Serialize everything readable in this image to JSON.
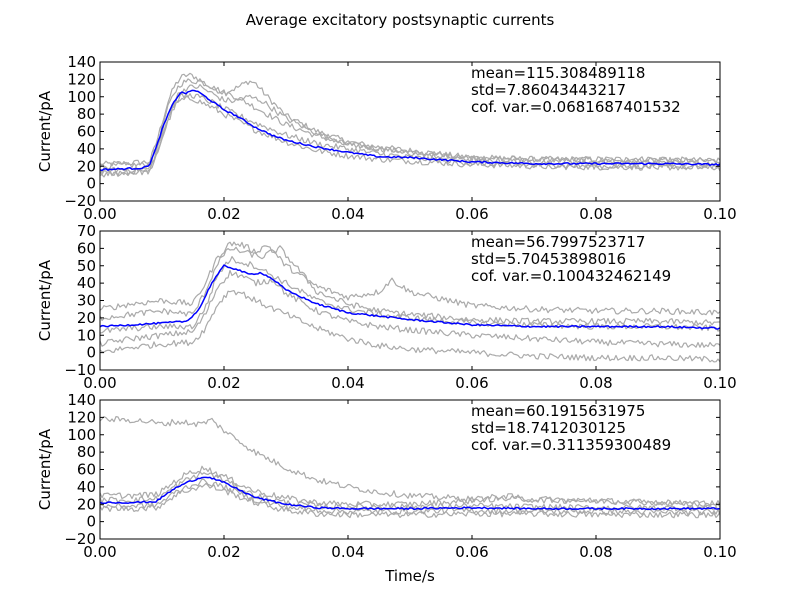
{
  "figure": {
    "title": "Average excitatory postsynaptic currents",
    "xlabel": "Time/s",
    "background": "#ffffff",
    "trial_color": "#aaaaaa",
    "mean_color": "#0000ff"
  },
  "chart_data": [
    {
      "type": "line",
      "ylabel": "Current/pA",
      "xlim": [
        0,
        0.1
      ],
      "ylim": [
        -20,
        140
      ],
      "xticks": [
        0,
        0.02,
        0.04,
        0.06,
        0.08,
        0.1
      ],
      "xtick_labels": [
        "0.00",
        "0.02",
        "0.04",
        "0.06",
        "0.08",
        "0.10"
      ],
      "yticks": [
        -20,
        0,
        20,
        40,
        60,
        80,
        100,
        120,
        140
      ],
      "ytick_labels": [
        "−20",
        "0",
        "20",
        "40",
        "60",
        "80",
        "100",
        "120",
        "140"
      ],
      "grid": false,
      "annotations": [
        "mean=115.308489118",
        "std=7.86043443217",
        "cof. var.=0.0681687401532"
      ],
      "series": [
        {
          "role": "mean",
          "color": "#0000ff",
          "x": [
            0,
            0.007,
            0.008,
            0.009,
            0.01,
            0.011,
            0.012,
            0.013,
            0.014,
            0.015,
            0.016,
            0.018,
            0.02,
            0.022,
            0.025,
            0.028,
            0.03,
            0.035,
            0.04,
            0.045,
            0.05,
            0.06,
            0.07,
            0.08,
            0.09,
            0.1
          ],
          "y": [
            16,
            18,
            22,
            40,
            62,
            80,
            95,
            105,
            104,
            108,
            105,
            95,
            85,
            78,
            65,
            55,
            50,
            42,
            36,
            31,
            30,
            25,
            23,
            23,
            23,
            22
          ]
        },
        {
          "role": "trial",
          "color": "#aaaaaa",
          "x": [
            0,
            0.008,
            0.009,
            0.01,
            0.011,
            0.012,
            0.013,
            0.014,
            0.015,
            0.016,
            0.018,
            0.02,
            0.022,
            0.024,
            0.025,
            0.027,
            0.03,
            0.035,
            0.04,
            0.045,
            0.05,
            0.06,
            0.07,
            0.08,
            0.09,
            0.1
          ],
          "y": [
            22,
            25,
            45,
            70,
            95,
            112,
            122,
            125,
            124,
            120,
            110,
            105,
            110,
            118,
            116,
            100,
            78,
            60,
            48,
            42,
            38,
            30,
            28,
            28,
            28,
            26
          ]
        },
        {
          "role": "trial",
          "color": "#aaaaaa",
          "x": [
            0,
            0.008,
            0.009,
            0.01,
            0.011,
            0.012,
            0.013,
            0.014,
            0.016,
            0.018,
            0.02,
            0.022,
            0.025,
            0.03,
            0.035,
            0.04,
            0.045,
            0.05,
            0.06,
            0.07,
            0.08,
            0.09,
            0.1
          ],
          "y": [
            20,
            22,
            40,
            65,
            88,
            105,
            115,
            118,
            118,
            112,
            105,
            100,
            88,
            68,
            55,
            45,
            40,
            36,
            30,
            28,
            27,
            27,
            26
          ]
        },
        {
          "role": "trial",
          "color": "#aaaaaa",
          "x": [
            0,
            0.008,
            0.009,
            0.01,
            0.011,
            0.012,
            0.013,
            0.015,
            0.018,
            0.02,
            0.025,
            0.03,
            0.035,
            0.04,
            0.045,
            0.05,
            0.06,
            0.07,
            0.08,
            0.09,
            0.1
          ],
          "y": [
            10,
            14,
            30,
            52,
            72,
            88,
            96,
            98,
            88,
            80,
            62,
            48,
            38,
            32,
            28,
            26,
            22,
            20,
            19,
            19,
            18
          ]
        },
        {
          "role": "trial",
          "color": "#aaaaaa",
          "x": [
            0,
            0.008,
            0.009,
            0.01,
            0.011,
            0.012,
            0.013,
            0.014,
            0.016,
            0.018,
            0.02,
            0.022,
            0.024,
            0.026,
            0.03,
            0.035,
            0.04,
            0.045,
            0.05,
            0.06,
            0.07,
            0.08,
            0.09,
            0.1
          ],
          "y": [
            15,
            17,
            35,
            58,
            80,
            96,
            106,
            110,
            112,
            104,
            96,
            95,
            100,
            96,
            75,
            58,
            46,
            40,
            35,
            28,
            25,
            25,
            24,
            23
          ]
        },
        {
          "role": "trial",
          "color": "#aaaaaa",
          "x": [
            0,
            0.008,
            0.009,
            0.01,
            0.011,
            0.012,
            0.013,
            0.015,
            0.018,
            0.02,
            0.025,
            0.03,
            0.035,
            0.04,
            0.045,
            0.05,
            0.06,
            0.07,
            0.08,
            0.09,
            0.1
          ],
          "y": [
            12,
            15,
            32,
            55,
            76,
            92,
            100,
            102,
            94,
            86,
            70,
            56,
            46,
            40,
            34,
            30,
            24,
            21,
            20,
            20,
            20
          ]
        }
      ]
    },
    {
      "type": "line",
      "ylabel": "Current/pA",
      "xlim": [
        0,
        0.1
      ],
      "ylim": [
        -10,
        70
      ],
      "xticks": [
        0,
        0.02,
        0.04,
        0.06,
        0.08,
        0.1
      ],
      "xtick_labels": [
        "0.00",
        "0.02",
        "0.04",
        "0.06",
        "0.08",
        "0.10"
      ],
      "yticks": [
        -10,
        0,
        10,
        20,
        30,
        40,
        50,
        60,
        70
      ],
      "ytick_labels": [
        "−10",
        "0",
        "10",
        "20",
        "30",
        "40",
        "50",
        "60",
        "70"
      ],
      "grid": false,
      "annotations": [
        "mean=56.7997523717",
        "std=5.70453898016",
        "cof. var.=0.100432462149"
      ],
      "series": [
        {
          "role": "mean",
          "color": "#0000ff",
          "x": [
            0,
            0.005,
            0.01,
            0.014,
            0.016,
            0.018,
            0.02,
            0.022,
            0.024,
            0.026,
            0.028,
            0.03,
            0.035,
            0.04,
            0.045,
            0.05,
            0.06,
            0.07,
            0.08,
            0.09,
            0.1
          ],
          "y": [
            15,
            16,
            17,
            18,
            25,
            40,
            50,
            48,
            45,
            46,
            42,
            36,
            28,
            23,
            21,
            19,
            16,
            15,
            15,
            15,
            14
          ]
        },
        {
          "role": "trial",
          "color": "#aaaaaa",
          "x": [
            0,
            0.005,
            0.01,
            0.015,
            0.017,
            0.019,
            0.021,
            0.023,
            0.025,
            0.027,
            0.03,
            0.035,
            0.04,
            0.045,
            0.047,
            0.05,
            0.06,
            0.07,
            0.08,
            0.09,
            0.1
          ],
          "y": [
            25,
            28,
            30,
            28,
            40,
            55,
            63,
            62,
            58,
            62,
            50,
            38,
            32,
            35,
            42,
            35,
            27,
            25,
            24,
            24,
            23
          ]
        },
        {
          "role": "trial",
          "color": "#aaaaaa",
          "x": [
            0,
            0.005,
            0.01,
            0.015,
            0.017,
            0.019,
            0.021,
            0.023,
            0.025,
            0.028,
            0.03,
            0.035,
            0.04,
            0.045,
            0.05,
            0.06,
            0.07,
            0.08,
            0.09,
            0.1
          ],
          "y": [
            5,
            8,
            10,
            12,
            22,
            38,
            46,
            44,
            40,
            42,
            34,
            24,
            18,
            15,
            13,
            10,
            8,
            6,
            5,
            4
          ]
        },
        {
          "role": "trial",
          "color": "#aaaaaa",
          "x": [
            0,
            0.005,
            0.01,
            0.015,
            0.017,
            0.019,
            0.021,
            0.023,
            0.026,
            0.029,
            0.032,
            0.035,
            0.04,
            0.045,
            0.05,
            0.06,
            0.07,
            0.08,
            0.09,
            0.1
          ],
          "y": [
            20,
            22,
            24,
            22,
            35,
            52,
            60,
            58,
            55,
            60,
            48,
            35,
            28,
            24,
            22,
            19,
            18,
            18,
            18,
            17
          ]
        },
        {
          "role": "trial",
          "color": "#aaaaaa",
          "x": [
            0,
            0.005,
            0.01,
            0.015,
            0.017,
            0.019,
            0.021,
            0.023,
            0.025,
            0.03,
            0.035,
            0.04,
            0.045,
            0.05,
            0.06,
            0.07,
            0.08,
            0.09,
            0.1
          ],
          "y": [
            0,
            3,
            5,
            6,
            14,
            28,
            36,
            34,
            30,
            22,
            14,
            8,
            4,
            2,
            0,
            -2,
            -3,
            -3,
            -4
          ]
        },
        {
          "role": "trial",
          "color": "#aaaaaa",
          "x": [
            0,
            0.005,
            0.01,
            0.015,
            0.017,
            0.019,
            0.021,
            0.023,
            0.025,
            0.03,
            0.035,
            0.04,
            0.045,
            0.05,
            0.06,
            0.07,
            0.08,
            0.09,
            0.1
          ],
          "y": [
            12,
            14,
            15,
            15,
            26,
            45,
            54,
            52,
            50,
            40,
            30,
            25,
            22,
            20,
            17,
            16,
            15,
            15,
            14
          ]
        }
      ]
    },
    {
      "type": "line",
      "ylabel": "Current/pA",
      "xlim": [
        0,
        0.1
      ],
      "ylim": [
        -20,
        140
      ],
      "xticks": [
        0,
        0.02,
        0.04,
        0.06,
        0.08,
        0.1
      ],
      "xtick_labels": [
        "0.00",
        "0.02",
        "0.04",
        "0.06",
        "0.08",
        "0.10"
      ],
      "yticks": [
        -20,
        0,
        20,
        40,
        60,
        80,
        100,
        120,
        140
      ],
      "ytick_labels": [
        "−20",
        "0",
        "20",
        "40",
        "60",
        "80",
        "100",
        "120",
        "140"
      ],
      "grid": false,
      "annotations": [
        "mean=60.1915631975",
        "std=18.7412030125",
        "cof. var.=0.311359300489"
      ],
      "series": [
        {
          "role": "mean",
          "color": "#0000ff",
          "x": [
            0,
            0.005,
            0.009,
            0.01,
            0.012,
            0.014,
            0.016,
            0.017,
            0.018,
            0.02,
            0.022,
            0.025,
            0.03,
            0.035,
            0.04,
            0.05,
            0.06,
            0.07,
            0.08,
            0.09,
            0.1
          ],
          "y": [
            22,
            22,
            23,
            28,
            38,
            45,
            50,
            52,
            50,
            45,
            38,
            28,
            20,
            16,
            15,
            15,
            16,
            15,
            15,
            15,
            15
          ]
        },
        {
          "role": "trial",
          "color": "#aaaaaa",
          "x": [
            0,
            0.005,
            0.008,
            0.01,
            0.012,
            0.014,
            0.016,
            0.018,
            0.02,
            0.022,
            0.025,
            0.03,
            0.035,
            0.04,
            0.045,
            0.05,
            0.055,
            0.06,
            0.07,
            0.08,
            0.09,
            0.1
          ],
          "y": [
            118,
            117,
            115,
            112,
            115,
            114,
            112,
            117,
            105,
            95,
            80,
            62,
            48,
            40,
            34,
            30,
            28,
            26,
            26,
            24,
            22,
            20
          ]
        },
        {
          "role": "trial",
          "color": "#aaaaaa",
          "x": [
            0,
            0.005,
            0.009,
            0.01,
            0.012,
            0.014,
            0.016,
            0.017,
            0.018,
            0.02,
            0.022,
            0.025,
            0.03,
            0.035,
            0.04,
            0.05,
            0.06,
            0.065,
            0.07,
            0.08,
            0.09,
            0.1
          ],
          "y": [
            30,
            30,
            31,
            35,
            46,
            55,
            60,
            62,
            58,
            52,
            45,
            35,
            27,
            22,
            20,
            20,
            24,
            30,
            25,
            24,
            22,
            21
          ]
        },
        {
          "role": "trial",
          "color": "#aaaaaa",
          "x": [
            0,
            0.005,
            0.009,
            0.01,
            0.012,
            0.014,
            0.016,
            0.017,
            0.018,
            0.02,
            0.022,
            0.025,
            0.03,
            0.035,
            0.04,
            0.05,
            0.06,
            0.07,
            0.08,
            0.09,
            0.1
          ],
          "y": [
            15,
            15,
            16,
            20,
            30,
            36,
            40,
            42,
            40,
            36,
            30,
            22,
            13,
            9,
            8,
            8,
            9,
            9,
            8,
            8,
            8
          ]
        },
        {
          "role": "trial",
          "color": "#aaaaaa",
          "x": [
            0,
            0.005,
            0.009,
            0.01,
            0.012,
            0.014,
            0.016,
            0.017,
            0.018,
            0.02,
            0.022,
            0.025,
            0.03,
            0.035,
            0.04,
            0.05,
            0.06,
            0.07,
            0.08,
            0.09,
            0.1
          ],
          "y": [
            25,
            25,
            26,
            30,
            40,
            48,
            54,
            56,
            54,
            48,
            40,
            30,
            22,
            18,
            17,
            17,
            18,
            17,
            16,
            16,
            16
          ]
        },
        {
          "role": "trial",
          "color": "#aaaaaa",
          "x": [
            0,
            0.005,
            0.009,
            0.01,
            0.012,
            0.014,
            0.016,
            0.017,
            0.018,
            0.02,
            0.022,
            0.025,
            0.03,
            0.035,
            0.04,
            0.05,
            0.06,
            0.07,
            0.08,
            0.09,
            0.1
          ],
          "y": [
            18,
            18,
            19,
            23,
            33,
            40,
            45,
            46,
            44,
            40,
            34,
            25,
            17,
            13,
            12,
            12,
            13,
            12,
            12,
            11,
            11
          ]
        }
      ]
    }
  ]
}
